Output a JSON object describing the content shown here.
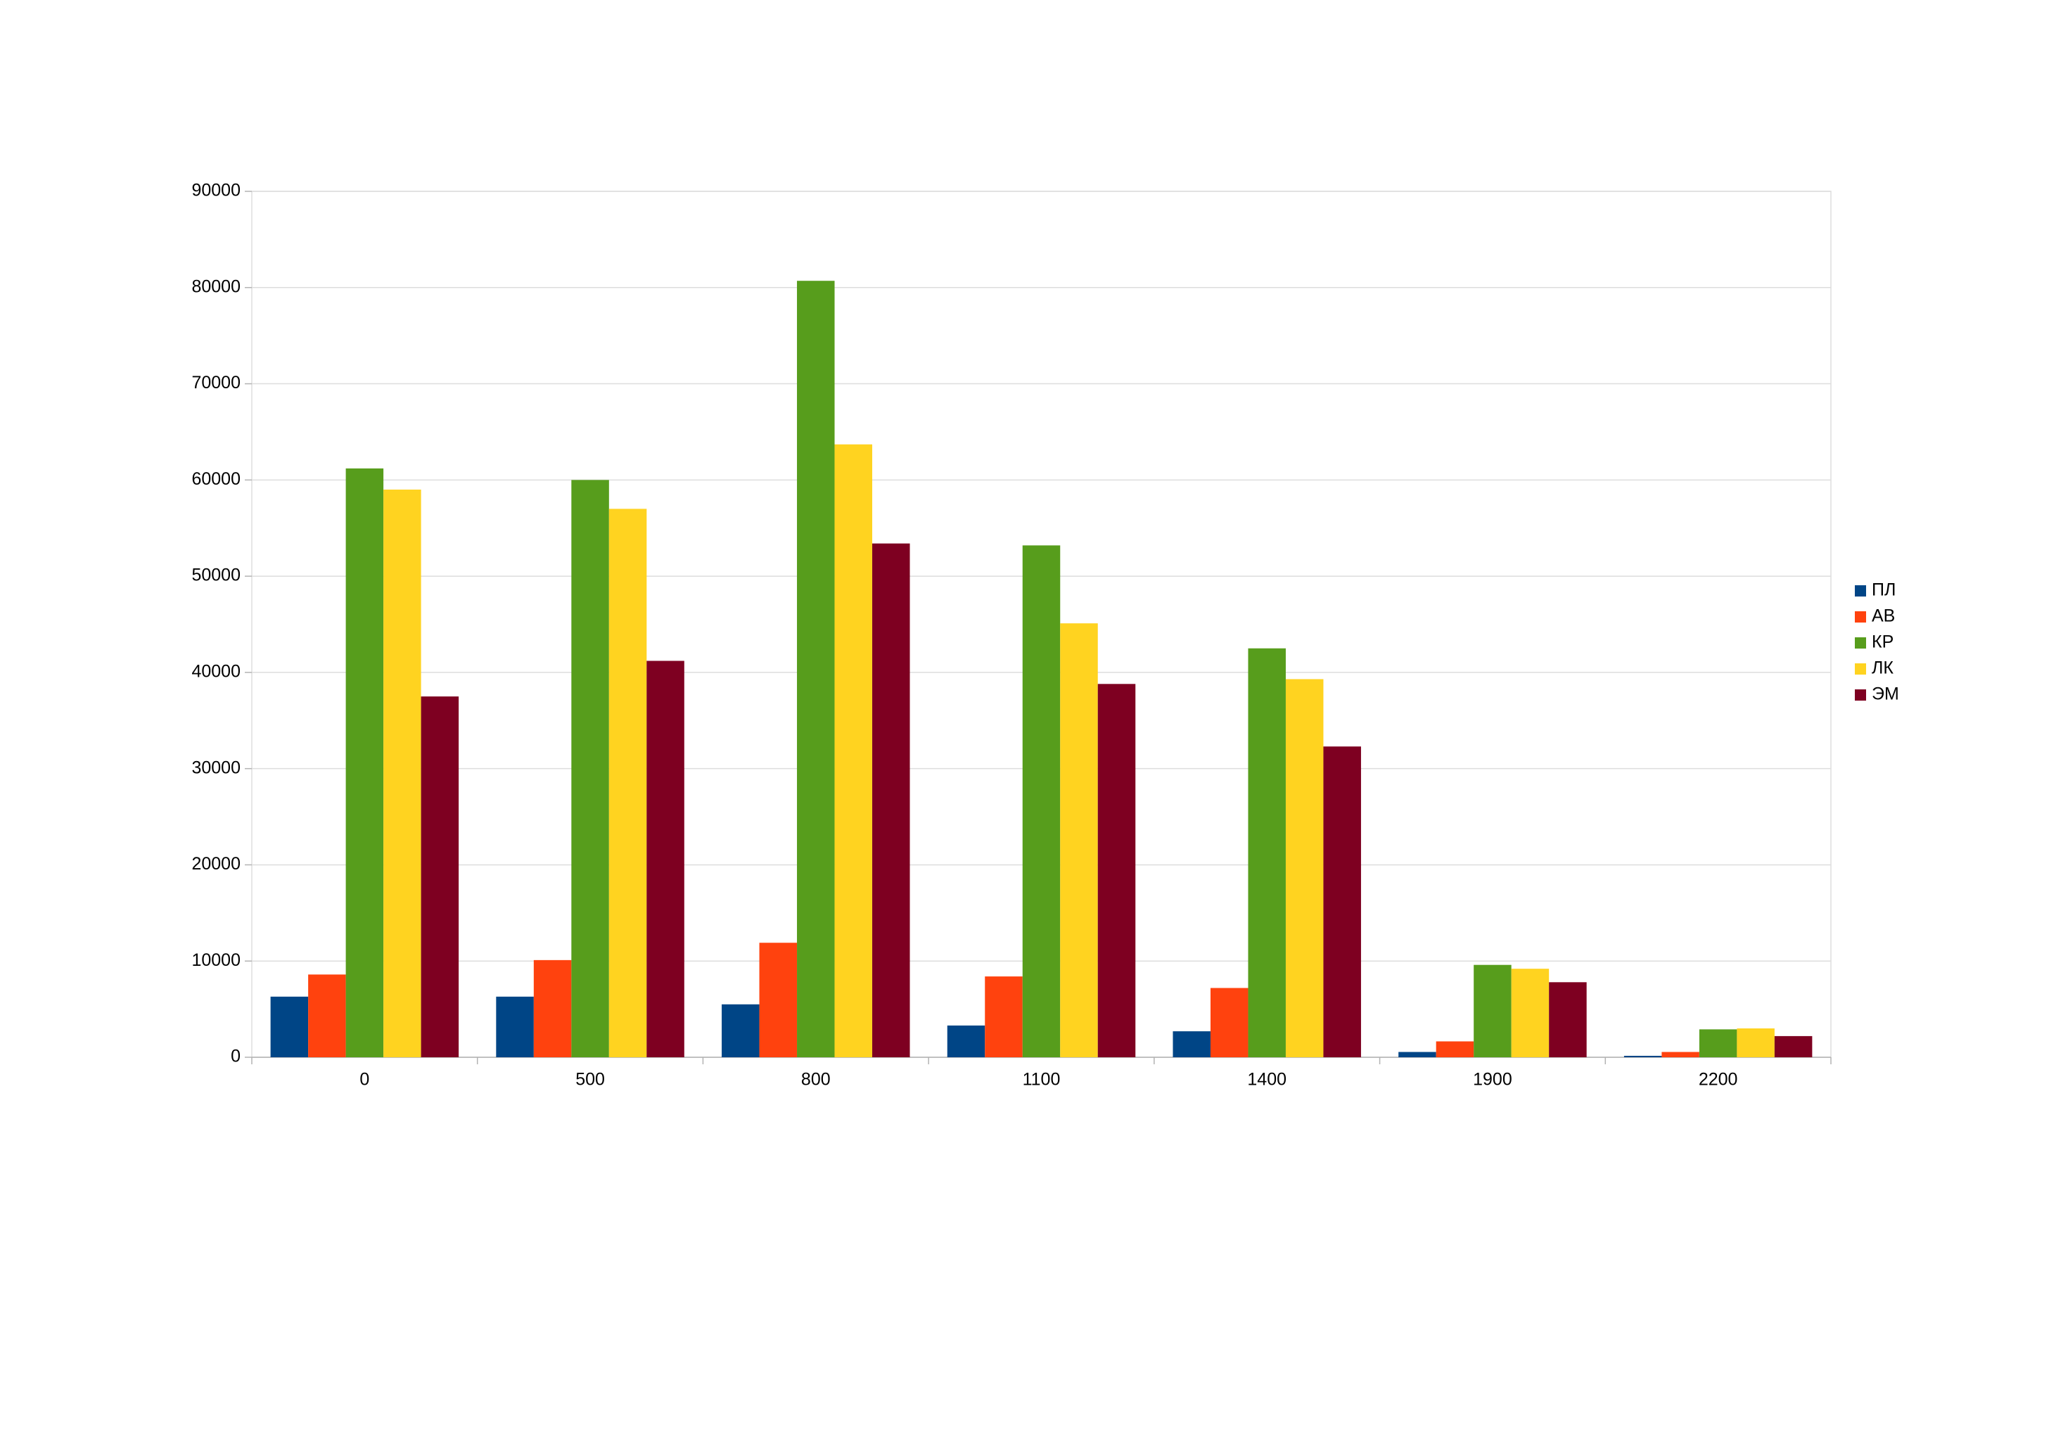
{
  "chart_data": {
    "type": "bar",
    "categories": [
      "0",
      "500",
      "800",
      "1100",
      "1400",
      "1900",
      "2200"
    ],
    "series": [
      {
        "name": "ПЛ",
        "color": "#004586",
        "values": [
          6300,
          6300,
          5500,
          3300,
          2700,
          550,
          150
        ]
      },
      {
        "name": "АВ",
        "color": "#ff420e",
        "values": [
          8600,
          10100,
          11900,
          8400,
          7200,
          1650,
          550
        ]
      },
      {
        "name": "КР",
        "color": "#579d1c",
        "values": [
          61200,
          60000,
          80700,
          53200,
          42500,
          9600,
          2900
        ]
      },
      {
        "name": "ЛК",
        "color": "#ffd320",
        "values": [
          59000,
          57000,
          63700,
          45100,
          39300,
          9200,
          3000
        ]
      },
      {
        "name": "ЭМ",
        "color": "#7e0021",
        "values": [
          37500,
          41200,
          53400,
          38800,
          32300,
          7800,
          2200
        ]
      }
    ],
    "ylim": [
      0,
      90000
    ],
    "yticks": [
      0,
      10000,
      20000,
      30000,
      40000,
      50000,
      60000,
      70000,
      80000,
      90000
    ],
    "grid": true,
    "legend": "right"
  }
}
